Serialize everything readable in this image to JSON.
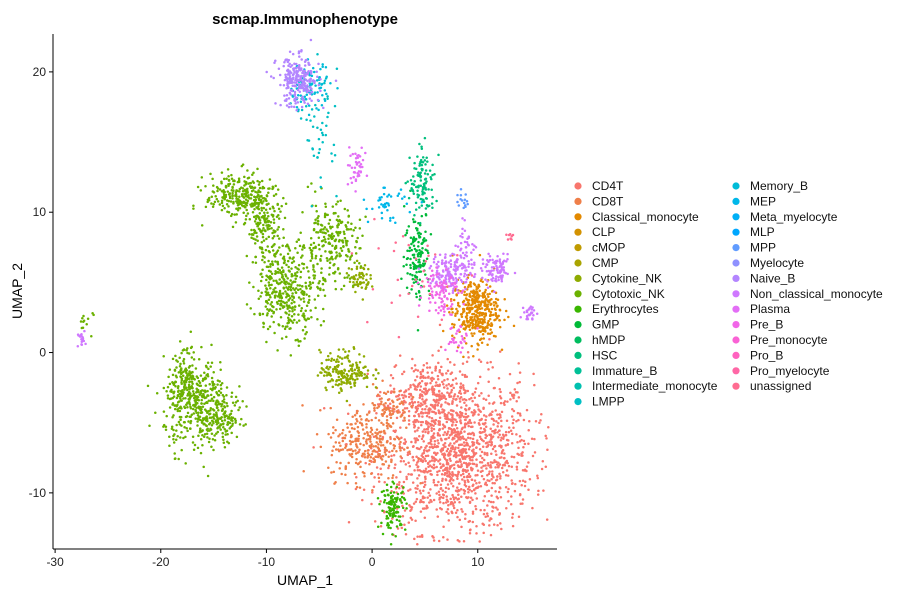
{
  "chart_data": {
    "type": "scatter",
    "title": "scmap.Immunophenotype",
    "xlabel": "UMAP_1",
    "ylabel": "UMAP_2",
    "xlim": [
      -30.2,
      17.5
    ],
    "ylim": [
      -14,
      22.7
    ],
    "x_ticks": [
      -30,
      -20,
      -10,
      0,
      10
    ],
    "y_ticks": [
      -10,
      0,
      10,
      20
    ],
    "grid": false,
    "legend_position": "right",
    "legend": [
      {
        "name": "CD4T",
        "color": "#F8766D"
      },
      {
        "name": "CD8T",
        "color": "#EF7F49"
      },
      {
        "name": "Classical_monocyte",
        "color": "#E38900"
      },
      {
        "name": "CLP",
        "color": "#D39200"
      },
      {
        "name": "cMOP",
        "color": "#C09B00"
      },
      {
        "name": "CMP",
        "color": "#A9A400"
      },
      {
        "name": "Cytokine_NK",
        "color": "#8EAB00"
      },
      {
        "name": "Cytotoxic_NK",
        "color": "#6BB100"
      },
      {
        "name": "Erythrocytes",
        "color": "#39B600"
      },
      {
        "name": "GMP",
        "color": "#00BA38"
      },
      {
        "name": "hMDP",
        "color": "#00BD5F"
      },
      {
        "name": "HSC",
        "color": "#00BF7D"
      },
      {
        "name": "Immature_B",
        "color": "#00C097"
      },
      {
        "name": "Intermediate_monocyte",
        "color": "#00C0AF"
      },
      {
        "name": "LMPP",
        "color": "#00BFC4"
      },
      {
        "name": "Memory_B",
        "color": "#00BCD8"
      },
      {
        "name": "MEP",
        "color": "#00B7E9"
      },
      {
        "name": "Meta_myelocyte",
        "color": "#00B0F6"
      },
      {
        "name": "MLP",
        "color": "#00A7FF"
      },
      {
        "name": "MPP",
        "color": "#619CFF"
      },
      {
        "name": "Myelocyte",
        "color": "#8F91FF"
      },
      {
        "name": "Naive_B",
        "color": "#B385FF"
      },
      {
        "name": "Non_classical_monocyte",
        "color": "#CF78FF"
      },
      {
        "name": "Plasma",
        "color": "#E36EF6"
      },
      {
        "name": "Pre_B",
        "color": "#F166E8"
      },
      {
        "name": "Pre_monocyte",
        "color": "#FA62D5"
      },
      {
        "name": "Pro_B",
        "color": "#FF62BF"
      },
      {
        "name": "Pro_myelocyte",
        "color": "#FF67A6"
      },
      {
        "name": "unassigned",
        "color": "#FF6C91"
      }
    ],
    "clusters": [
      {
        "label": "CD4T",
        "color": "#F8766D",
        "cx": 8,
        "cy": -7.2,
        "sx": 3.6,
        "sy": 2.8,
        "n": 1400
      },
      {
        "label": "CD4T",
        "color": "#F8766D",
        "cx": 5,
        "cy": -2.8,
        "sx": 1.8,
        "sy": 1.0,
        "n": 200
      },
      {
        "label": "CD8T",
        "color": "#EF7F49",
        "cx": -0.5,
        "cy": -6.5,
        "sx": 1.8,
        "sy": 1.3,
        "n": 260
      },
      {
        "label": "CD8T",
        "color": "#EF7F49",
        "cx": 1.5,
        "cy": -4.0,
        "sx": 1.0,
        "sy": 0.8,
        "n": 80
      },
      {
        "label": "Classical_monocyte",
        "color": "#E38900",
        "cx": 9.8,
        "cy": 3.0,
        "sx": 1.1,
        "sy": 1.1,
        "n": 380
      },
      {
        "label": "Cytokine_NK",
        "color": "#8EAB00",
        "cx": -2.5,
        "cy": -1.3,
        "sx": 1.2,
        "sy": 0.7,
        "n": 180
      },
      {
        "label": "Cytokine_NK",
        "color": "#8EAB00",
        "cx": -1.2,
        "cy": 5.3,
        "sx": 0.5,
        "sy": 0.5,
        "n": 60
      },
      {
        "label": "Cytotoxic_NK",
        "color": "#6BB100",
        "cx": -16.5,
        "cy": -3.8,
        "sx": 1.6,
        "sy": 1.6,
        "n": 420
      },
      {
        "label": "Cytotoxic_NK",
        "color": "#6BB100",
        "cx": -17.8,
        "cy": -1.5,
        "sx": 0.7,
        "sy": 0.9,
        "n": 90
      },
      {
        "label": "Cytotoxic_NK",
        "color": "#6BB100",
        "cx": -14.0,
        "cy": -4.8,
        "sx": 0.9,
        "sy": 0.7,
        "n": 90
      },
      {
        "label": "Cytotoxic_NK",
        "color": "#6BB100",
        "cx": -12.5,
        "cy": 11.2,
        "sx": 1.6,
        "sy": 0.8,
        "n": 260
      },
      {
        "label": "Cytotoxic_NK",
        "color": "#6BB100",
        "cx": -10.3,
        "cy": 9.0,
        "sx": 0.8,
        "sy": 1.2,
        "n": 160
      },
      {
        "label": "Cytotoxic_NK",
        "color": "#6BB100",
        "cx": -8.0,
        "cy": 4.5,
        "sx": 1.5,
        "sy": 1.6,
        "n": 380
      },
      {
        "label": "Cytotoxic_NK",
        "color": "#6BB100",
        "cx": -4.0,
        "cy": 7.8,
        "sx": 1.4,
        "sy": 1.4,
        "n": 230
      },
      {
        "label": "Cytotoxic_NK",
        "color": "#6BB100",
        "cx": -27.0,
        "cy": 2.2,
        "sx": 0.4,
        "sy": 0.4,
        "n": 12
      },
      {
        "label": "Erythrocytes",
        "color": "#39B600",
        "cx": 2.0,
        "cy": -11.0,
        "sx": 0.6,
        "sy": 0.8,
        "n": 120
      },
      {
        "label": "GMP",
        "color": "#00BA38",
        "cx": 4.3,
        "cy": 7.0,
        "sx": 0.6,
        "sy": 1.6,
        "n": 140
      },
      {
        "label": "HSC",
        "color": "#00BF7D",
        "cx": 4.8,
        "cy": 12.0,
        "sx": 0.6,
        "sy": 1.2,
        "n": 110
      },
      {
        "label": "LMPP",
        "color": "#00BFC4",
        "cx": -5.0,
        "cy": 16.0,
        "sx": 0.9,
        "sy": 2.0,
        "n": 50
      },
      {
        "label": "Memory_B",
        "color": "#00BCD8",
        "cx": -6.0,
        "cy": 18.9,
        "sx": 1.0,
        "sy": 0.8,
        "n": 90
      },
      {
        "label": "MEP",
        "color": "#00B7E9",
        "cx": 1.5,
        "cy": 10.5,
        "sx": 0.9,
        "sy": 0.6,
        "n": 40
      },
      {
        "label": "MPP",
        "color": "#619CFF",
        "cx": 8.5,
        "cy": 10.8,
        "sx": 0.3,
        "sy": 0.3,
        "n": 15
      },
      {
        "label": "Naive_B",
        "color": "#B385FF",
        "cx": -7.0,
        "cy": 19.3,
        "sx": 1.0,
        "sy": 0.9,
        "n": 240
      },
      {
        "label": "Non_classical_monocyte",
        "color": "#CF78FF",
        "cx": 7.5,
        "cy": 5.8,
        "sx": 1.0,
        "sy": 0.7,
        "n": 140
      },
      {
        "label": "Non_classical_monocyte",
        "color": "#CF78FF",
        "cx": 11.8,
        "cy": 5.8,
        "sx": 0.7,
        "sy": 0.5,
        "n": 90
      },
      {
        "label": "Non_classical_monocyte",
        "color": "#CF78FF",
        "cx": 8.8,
        "cy": 7.5,
        "sx": 0.5,
        "sy": 0.8,
        "n": 40
      },
      {
        "label": "Non_classical_monocyte",
        "color": "#CF78FF",
        "cx": 15.0,
        "cy": 2.8,
        "sx": 0.3,
        "sy": 0.3,
        "n": 25
      },
      {
        "label": "Non_classical_monocyte",
        "color": "#CF78FF",
        "cx": -27.5,
        "cy": 1.0,
        "sx": 0.2,
        "sy": 0.3,
        "n": 20
      },
      {
        "label": "Plasma",
        "color": "#E36EF6",
        "cx": -1.6,
        "cy": 13.2,
        "sx": 0.5,
        "sy": 0.6,
        "n": 45
      },
      {
        "label": "Pre_B",
        "color": "#F166E8",
        "cx": 6.5,
        "cy": 4.5,
        "sx": 0.8,
        "sy": 0.9,
        "n": 90
      },
      {
        "label": "Pre_B",
        "color": "#F166E8",
        "cx": 8.0,
        "cy": 1.0,
        "sx": 0.6,
        "sy": 0.6,
        "n": 30
      },
      {
        "label": "unassigned",
        "color": "#FF6C91",
        "cx": 3.0,
        "cy": 5.5,
        "sx": 2.5,
        "sy": 2.5,
        "n": 30
      },
      {
        "label": "unassigned",
        "color": "#FF6C91",
        "cx": 13.0,
        "cy": 8.2,
        "sx": 0.2,
        "sy": 0.2,
        "n": 8
      }
    ]
  }
}
